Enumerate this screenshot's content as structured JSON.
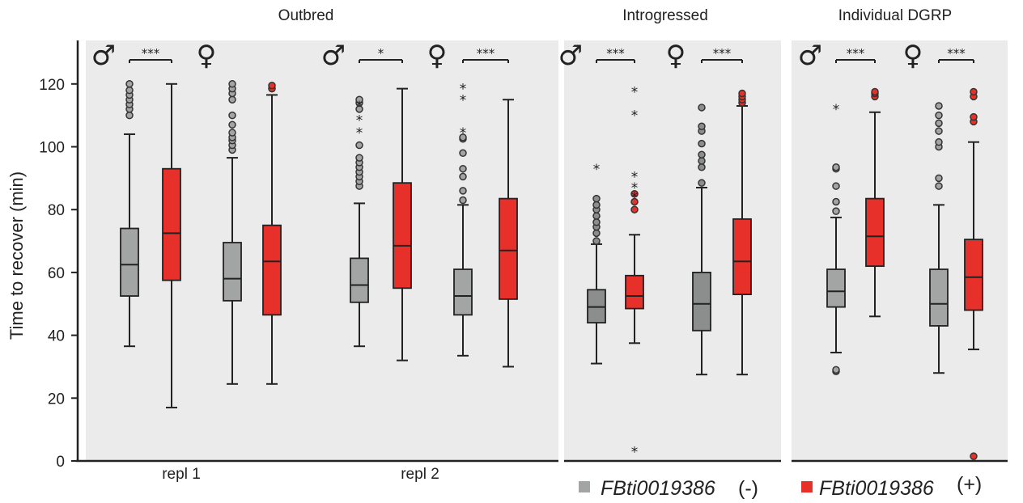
{
  "chart_data": {
    "type": "box",
    "ylabel": "Time to recover (min)",
    "ylim": [
      0,
      132
    ],
    "yticks": [
      0,
      20,
      40,
      60,
      80,
      100,
      120
    ],
    "colors": {
      "minus": "#a3a5a5",
      "plus": "#e8302a",
      "minus_dark": "#8c8e8e",
      "panel": "#ebebeb"
    },
    "panels": [
      {
        "title": "Outbred",
        "xlabels": [
          "repl 1",
          "repl 2"
        ]
      },
      {
        "title": "Introgressed",
        "xlabels": []
      },
      {
        "title": "Individual DGRP",
        "xlabels": []
      }
    ],
    "sex_symbols": {
      "male": "♂",
      "female": "♀"
    },
    "groups": [
      {
        "panel": 0,
        "sex": "male",
        "sig": "***",
        "minus": {
          "whislo": 36.5,
          "q1": 52.5,
          "med": 62.5,
          "q3": 74,
          "whishi": 104,
          "out_circle": [
            110,
            112,
            113.5,
            115,
            116.5,
            118,
            120
          ],
          "out_star": []
        },
        "plus": {
          "whislo": 17,
          "q1": 57.5,
          "med": 72.5,
          "q3": 93,
          "whishi": 120,
          "out_circle": [],
          "out_star": []
        }
      },
      {
        "panel": 0,
        "sex": "female",
        "sig": null,
        "minus": {
          "whislo": 24.5,
          "q1": 51,
          "med": 58,
          "q3": 69.5,
          "whishi": 96.5,
          "out_circle": [
            99,
            100.5,
            102,
            103,
            104.5,
            107,
            110,
            115,
            117,
            118.5,
            120
          ],
          "out_star": []
        },
        "plus": {
          "whislo": 24.5,
          "q1": 46.5,
          "med": 63.5,
          "q3": 75,
          "whishi": 116.5,
          "out_circle": [
            118.5,
            119.5
          ],
          "out_star": []
        }
      },
      {
        "panel": 0,
        "sex": "male",
        "sig": "*",
        "minus": {
          "whislo": 36.5,
          "q1": 50.5,
          "med": 56,
          "q3": 64.5,
          "whishi": 82,
          "out_circle": [
            87.5,
            89,
            90.5,
            92,
            93.5,
            95,
            96.5,
            100.5,
            112,
            114,
            115
          ],
          "out_star": [
            105,
            109,
            113.5
          ]
        },
        "plus": {
          "whislo": 32,
          "q1": 55,
          "med": 68.5,
          "q3": 88.5,
          "whishi": 118.5,
          "out_circle": [],
          "out_star": []
        }
      },
      {
        "panel": 0,
        "sex": "female",
        "sig": "***",
        "minus": {
          "whislo": 33.5,
          "q1": 46.5,
          "med": 52.5,
          "q3": 61,
          "whishi": 81.5,
          "out_circle": [
            83,
            86,
            90.5,
            93,
            98,
            102.5,
            103
          ],
          "out_star": [
            105,
            115.5,
            119
          ]
        },
        "plus": {
          "whislo": 30,
          "q1": 51.5,
          "med": 67,
          "q3": 83.5,
          "whishi": 115,
          "out_circle": [],
          "out_star": []
        }
      },
      {
        "panel": 1,
        "sex": "male",
        "sig": "***",
        "minus_dark": true,
        "minus": {
          "whislo": 31,
          "q1": 44,
          "med": 49,
          "q3": 54.5,
          "whishi": 69,
          "out_circle": [
            70,
            72.5,
            74.5,
            76,
            78,
            80,
            81.5,
            83.5
          ],
          "out_star": [
            93.5
          ]
        },
        "plus": {
          "whislo": 37.5,
          "q1": 48.5,
          "med": 52.5,
          "q3": 59,
          "whishi": 72,
          "out_circle": [
            80,
            82.5,
            85
          ],
          "out_star": [
            3.5,
            84.5,
            87.5,
            91,
            110.5,
            118
          ]
        }
      },
      {
        "panel": 1,
        "sex": "female",
        "sig": "***",
        "minus_dark": true,
        "minus": {
          "whislo": 27.5,
          "q1": 41.5,
          "med": 50,
          "q3": 60,
          "whishi": 87,
          "out_circle": [
            88.5,
            93.5,
            95.5,
            97.5,
            101,
            105,
            106.5,
            112.5
          ],
          "out_star": []
        },
        "plus": {
          "whislo": 27.5,
          "q1": 53,
          "med": 63.5,
          "q3": 77,
          "whishi": 113,
          "out_circle": [
            114,
            115,
            116,
            117
          ],
          "out_star": []
        }
      },
      {
        "panel": 2,
        "sex": "male",
        "sig": "***",
        "minus": {
          "whislo": 34.5,
          "q1": 49,
          "med": 54,
          "q3": 61,
          "whishi": 77.5,
          "out_circle": [
            28.5,
            29,
            79.5,
            82.5,
            87.5,
            93,
            93.5
          ],
          "out_star": [
            112.5
          ]
        },
        "plus": {
          "whislo": 46,
          "q1": 62,
          "med": 71.5,
          "q3": 83.5,
          "whishi": 111,
          "out_circle": [
            116,
            117,
            117.5
          ],
          "out_star": []
        }
      },
      {
        "panel": 2,
        "sex": "female",
        "sig": "***",
        "minus": {
          "whislo": 28,
          "q1": 43,
          "med": 50,
          "q3": 61,
          "whishi": 81.5,
          "out_circle": [
            87.5,
            90,
            100,
            101.5,
            105,
            107.5,
            110,
            113
          ],
          "out_star": []
        },
        "plus": {
          "whislo": 35.5,
          "q1": 48,
          "med": 58.5,
          "q3": 70.5,
          "whishi": 101.5,
          "out_circle": [
            1.5,
            108,
            109.5,
            116,
            117.5
          ],
          "out_star": []
        }
      }
    ],
    "legend": [
      {
        "name": "FBti0019386",
        "suffix": "(-)",
        "color": "#a3a5a5"
      },
      {
        "name": "FBti0019386",
        "suffix": "(+)",
        "color": "#e8302a"
      }
    ]
  }
}
